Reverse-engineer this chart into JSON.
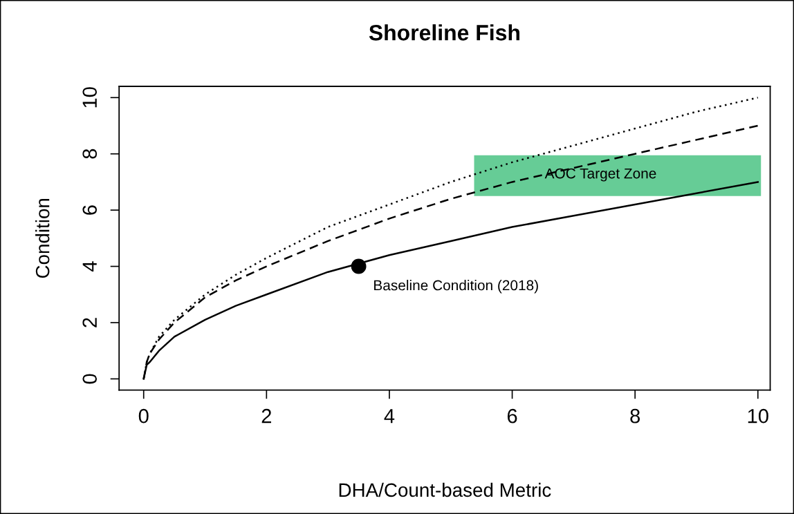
{
  "chart_data": {
    "type": "line",
    "title": "Shoreline Fish",
    "xlabel": "DHA/Count-based Metric",
    "ylabel": "Condition",
    "x": [
      0,
      0.05,
      0.1,
      0.25,
      0.5,
      1,
      1.5,
      2,
      3,
      4,
      5,
      6,
      7,
      8,
      9,
      10
    ],
    "series": [
      {
        "color": "#000000",
        "line_style": "dotted",
        "values": [
          0,
          0.6,
          0.9,
          1.5,
          2.1,
          3.0,
          3.7,
          4.3,
          5.4,
          6.2,
          7.0,
          7.7,
          8.3,
          8.9,
          9.5,
          10
        ]
      },
      {
        "color": "#000000",
        "line_style": "dashed",
        "values": [
          0,
          0.6,
          0.9,
          1.4,
          2.0,
          2.9,
          3.5,
          4.0,
          4.9,
          5.7,
          6.4,
          7.0,
          7.5,
          8.0,
          8.5,
          9.0
        ]
      },
      {
        "color": "#000000",
        "line_style": "solid",
        "values": [
          0,
          0.5,
          0.6,
          1.0,
          1.5,
          2.1,
          2.6,
          3.0,
          3.8,
          4.4,
          4.9,
          5.4,
          5.8,
          6.2,
          6.6,
          7.0
        ]
      },
      {
        "type": "scatter",
        "color": "#000000",
        "marker": "circle",
        "x": [
          3.5
        ],
        "values": [
          4.0
        ]
      },
      {
        "type": "area",
        "color": "#66cc96",
        "x": [
          5.38,
          10.05
        ],
        "values": [
          null,
          null
        ],
        "lower": [
          6.5,
          6.5
        ],
        "upper": [
          7.95,
          7.95
        ]
      }
    ],
    "annotations": [
      {
        "text": "Baseline Condition (2018)",
        "x": 3.5,
        "y": 4.0
      },
      {
        "text": "AOC Target Zone",
        "x": 6.53,
        "y": 7.26
      }
    ],
    "xlim": [
      -0.4,
      10.2
    ],
    "ylim": [
      -0.4,
      10.4
    ],
    "xticks": [
      0,
      2,
      4,
      6,
      8,
      10
    ],
    "yticks": [
      0,
      2,
      4,
      6,
      8,
      10
    ],
    "grid": false,
    "legend": false
  }
}
